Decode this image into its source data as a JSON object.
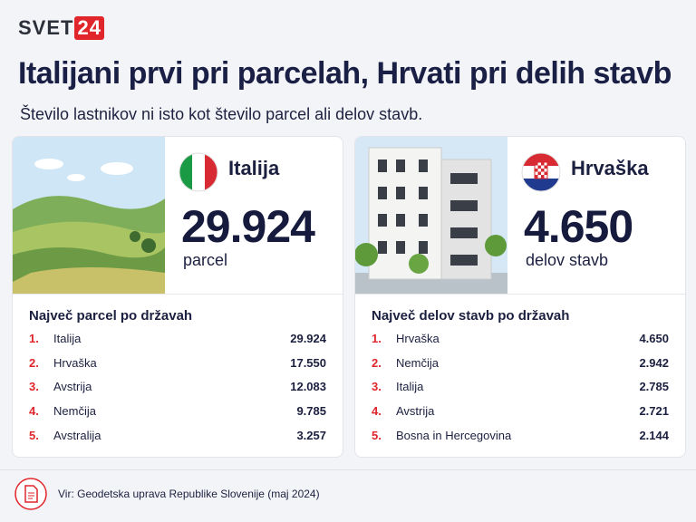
{
  "header": {
    "logo": [
      "SVET",
      "24"
    ],
    "title": "Italijani prvi pri parcelah, Hrvati pri delih stavb",
    "subtitle": "Število lastnikov ni isto kot število parcel ali delov stavb."
  },
  "cards": [
    {
      "country": "Italija",
      "number": "29.924",
      "unit": "parcel",
      "list_title": "Največ parcel po državah",
      "rows": [
        [
          "1.",
          "Italija",
          "29.924"
        ],
        [
          "2.",
          "Hrvaška",
          "17.550"
        ],
        [
          "3.",
          "Avstrija",
          "12.083"
        ],
        [
          "4.",
          "Nemčija",
          "9.785"
        ],
        [
          "5.",
          "Avstralija",
          "3.257"
        ]
      ]
    },
    {
      "country": "Hrvaška",
      "number": "4.650",
      "unit": "delov stavb",
      "list_title": "Največ delov stavb po državah",
      "rows": [
        [
          "1.",
          "Hrvaška",
          "4.650"
        ],
        [
          "2.",
          "Nemčija",
          "2.942"
        ],
        [
          "3.",
          "Italija",
          "2.785"
        ],
        [
          "4.",
          "Avstrija",
          "2.721"
        ],
        [
          "5.",
          "Bosna in Hercegovina",
          "2.144"
        ]
      ]
    }
  ],
  "footer": {
    "source": "Vir: Geodetska uprava Republike Slovenije (maj 2024)"
  }
}
